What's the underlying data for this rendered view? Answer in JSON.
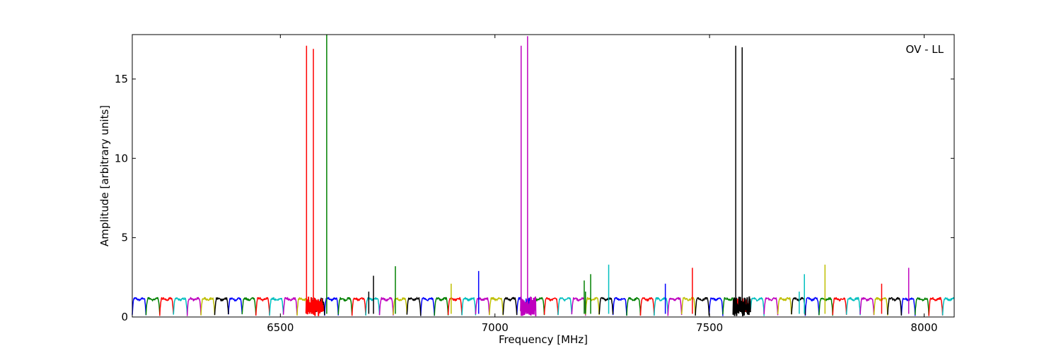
{
  "chart_data": {
    "type": "line",
    "title": "",
    "annotation": "OV - LL",
    "xlabel": "Frequency [MHz]",
    "ylabel": "Amplitude [arbitrary units]",
    "xlim": [
      6155,
      8070
    ],
    "ylim": [
      0,
      17.8
    ],
    "xticks": [
      6500,
      7000,
      7500,
      8000
    ],
    "yticks": [
      0,
      5,
      10,
      15
    ],
    "grid": false,
    "legend": "none",
    "channel_start": 6155,
    "channel_width": 32,
    "channel_colors": [
      "#0000ff",
      "#008000",
      "#ff0000",
      "#00bfbf",
      "#bf00bf",
      "#bfbf00",
      "#000000"
    ],
    "series": [
      {
        "color": "#0000ff",
        "channels": [
          6155,
          6379,
          6603,
          6827,
          7051,
          7275,
          7499,
          7723,
          7947
        ]
      },
      {
        "color": "#008000",
        "channels": [
          6187,
          6411,
          6635,
          6859,
          7083,
          7307,
          7531,
          7755,
          7979
        ]
      },
      {
        "color": "#ff0000",
        "channels": [
          6219,
          6443,
          6667,
          6891,
          7115,
          7339,
          7563,
          7787,
          8011
        ]
      },
      {
        "color": "#00bfbf",
        "channels": [
          6251,
          6475,
          6699,
          6923,
          7147,
          7371,
          7595,
          7819,
          8043
        ]
      },
      {
        "color": "#bf00bf",
        "channels": [
          6283,
          6507,
          6731,
          6955,
          7179,
          7403,
          7627,
          7851
        ]
      },
      {
        "color": "#bfbf00",
        "channels": [
          6315,
          6539,
          6763,
          6987,
          7211,
          7435,
          7659,
          7883
        ]
      },
      {
        "color": "#000000",
        "channels": [
          6347,
          6571,
          6795,
          7019,
          7243,
          7467,
          7691,
          7915
        ]
      }
    ],
    "spikes": [
      {
        "x": 6561,
        "y": 17.1,
        "color": "#ff0000"
      },
      {
        "x": 6577,
        "y": 16.9,
        "color": "#ff0000"
      },
      {
        "x": 6608,
        "y": 17.8,
        "color": "#008000"
      },
      {
        "x": 6706,
        "y": 1.6,
        "color": "#000000"
      },
      {
        "x": 6717,
        "y": 2.6,
        "color": "#000000"
      },
      {
        "x": 6768,
        "y": 3.2,
        "color": "#008000"
      },
      {
        "x": 6898,
        "y": 2.1,
        "color": "#bfbf00"
      },
      {
        "x": 6962,
        "y": 2.9,
        "color": "#0000ff"
      },
      {
        "x": 7061,
        "y": 17.1,
        "color": "#bf00bf"
      },
      {
        "x": 7076,
        "y": 17.7,
        "color": "#bf00bf"
      },
      {
        "x": 7208,
        "y": 2.3,
        "color": "#008000"
      },
      {
        "x": 7211,
        "y": 1.6,
        "color": "#008000"
      },
      {
        "x": 7223,
        "y": 2.7,
        "color": "#008000"
      },
      {
        "x": 7265,
        "y": 3.3,
        "color": "#00bfbf"
      },
      {
        "x": 7397,
        "y": 2.1,
        "color": "#0000ff"
      },
      {
        "x": 7460,
        "y": 3.1,
        "color": "#ff0000"
      },
      {
        "x": 7561,
        "y": 17.1,
        "color": "#000000"
      },
      {
        "x": 7576,
        "y": 17.0,
        "color": "#000000"
      },
      {
        "x": 7709,
        "y": 1.6,
        "color": "#00bfbf"
      },
      {
        "x": 7721,
        "y": 2.7,
        "color": "#00bfbf"
      },
      {
        "x": 7769,
        "y": 3.3,
        "color": "#bfbf00"
      },
      {
        "x": 7901,
        "y": 2.1,
        "color": "#ff0000"
      },
      {
        "x": 7964,
        "y": 3.1,
        "color": "#bf00bf"
      }
    ],
    "noise_regions": [
      {
        "x": [
          6560,
          6600
        ],
        "color": "#ff0000"
      },
      {
        "x": [
          7060,
          7095
        ],
        "color": "#bf00bf"
      },
      {
        "x": [
          7555,
          7595
        ],
        "color": "#000000"
      }
    ]
  }
}
